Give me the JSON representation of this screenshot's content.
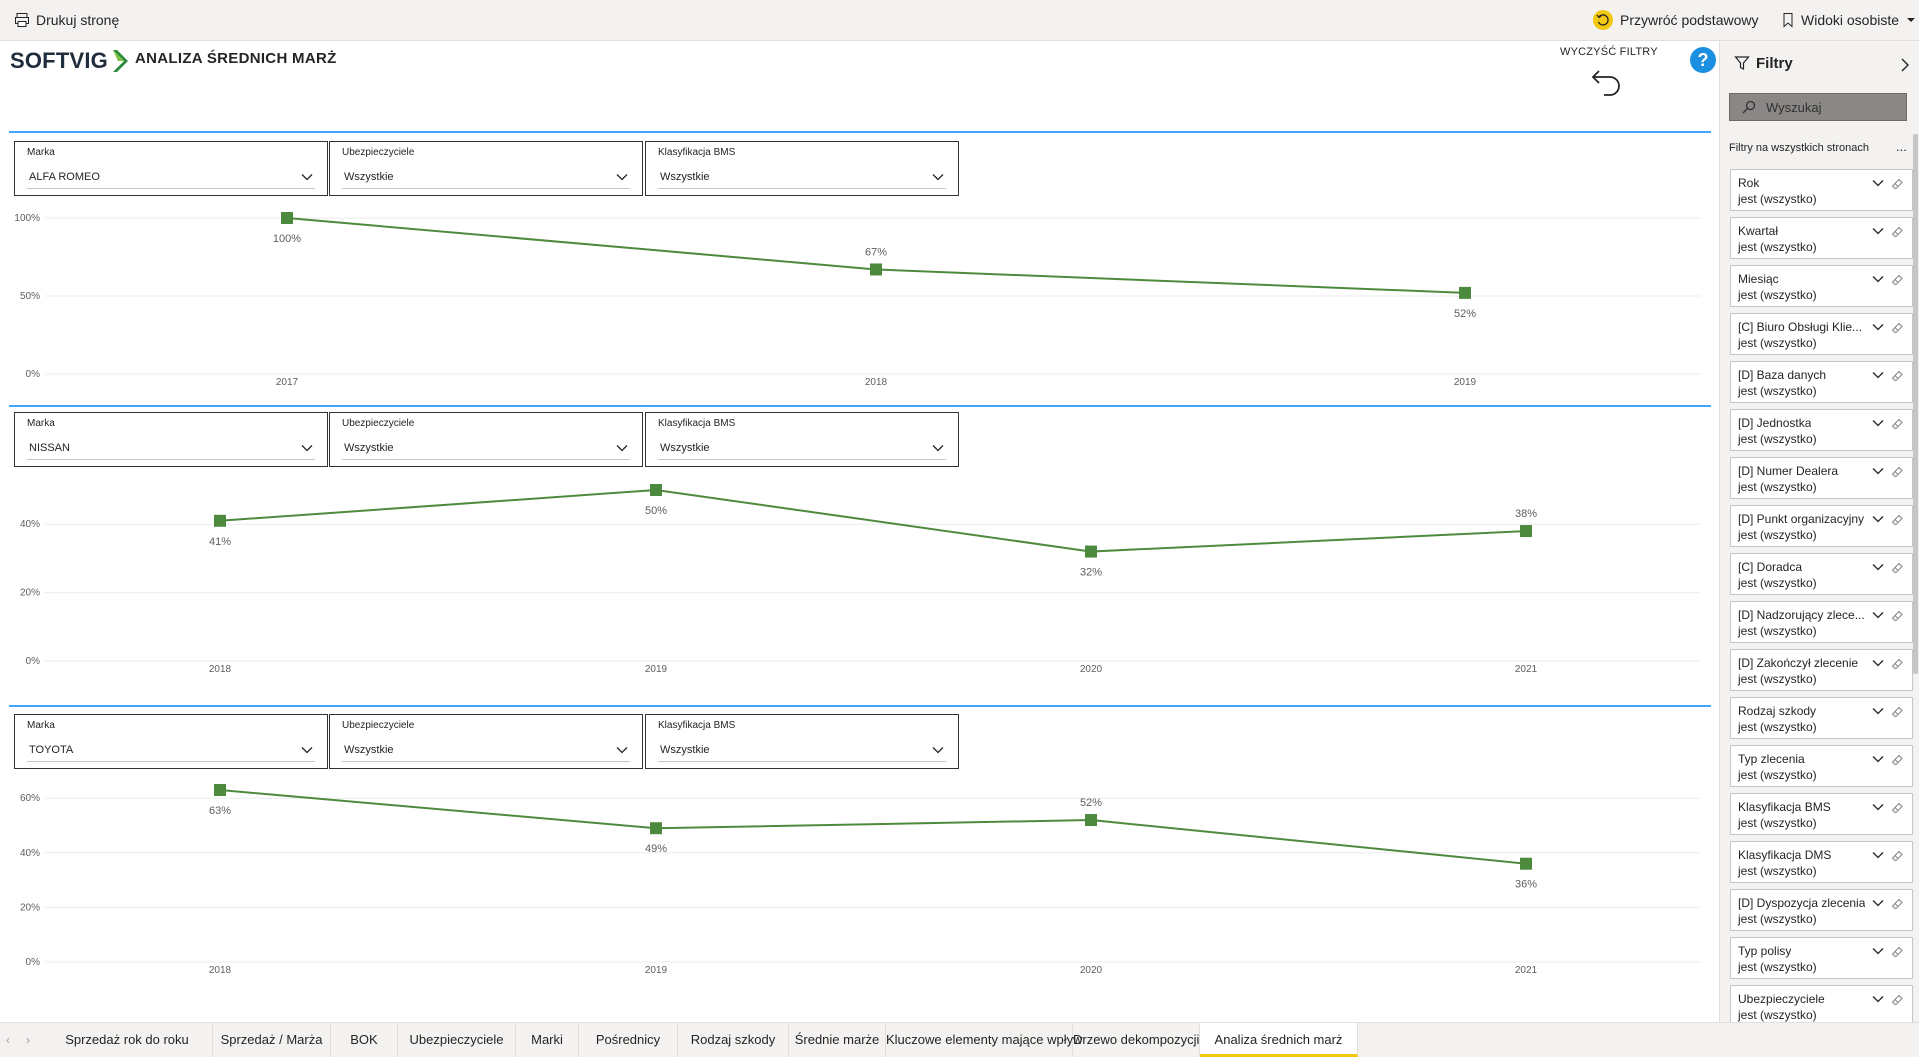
{
  "toolbar": {
    "print_label": "Drukuj stronę",
    "reset_label": "Przywróć podstawowy",
    "views_label": "Widoki osobiste"
  },
  "header": {
    "logo": "SOFTVIG",
    "title": "ANALIZA ŚREDNICH MARŻ",
    "clear_filters": "WYCZYŚĆ FILTRY",
    "help": "?"
  },
  "sections": [
    {
      "slicers": [
        {
          "title": "Marka",
          "value": "ALFA ROMEO"
        },
        {
          "title": "Ubezpieczyciele",
          "value": "Wszystkie"
        },
        {
          "title": "Klasyfikacja BMS",
          "value": "Wszystkie"
        }
      ]
    },
    {
      "slicers": [
        {
          "title": "Marka",
          "value": "NISSAN"
        },
        {
          "title": "Ubezpieczyciele",
          "value": "Wszystkie"
        },
        {
          "title": "Klasyfikacja BMS",
          "value": "Wszystkie"
        }
      ]
    },
    {
      "slicers": [
        {
          "title": "Marka",
          "value": "TOYOTA"
        },
        {
          "title": "Ubezpieczyciele",
          "value": "Wszystkie"
        },
        {
          "title": "Klasyfikacja BMS",
          "value": "Wszystkie"
        }
      ]
    }
  ],
  "chart_data": [
    {
      "type": "line",
      "x": [
        "2017",
        "2018",
        "2019"
      ],
      "series": [
        {
          "values": [
            100,
            67,
            52
          ]
        }
      ],
      "data_labels": [
        "100%",
        "67%",
        "52%"
      ],
      "yticks": [
        "0%",
        "50%",
        "100%"
      ],
      "ylim": [
        0,
        100
      ],
      "grid": true,
      "color": "#4e8a3e"
    },
    {
      "type": "line",
      "x": [
        "2018",
        "2019",
        "2020",
        "2021"
      ],
      "series": [
        {
          "values": [
            41,
            50,
            32,
            38
          ]
        }
      ],
      "data_labels": [
        "41%",
        "50%",
        "32%",
        "38%"
      ],
      "yticks": [
        "0%",
        "20%",
        "40%"
      ],
      "ylim": [
        0,
        50
      ],
      "grid": true,
      "color": "#4e8a3e"
    },
    {
      "type": "line",
      "x": [
        "2018",
        "2019",
        "2020",
        "2021"
      ],
      "series": [
        {
          "values": [
            63,
            49,
            52,
            36
          ]
        }
      ],
      "data_labels": [
        "63%",
        "49%",
        "52%",
        "36%"
      ],
      "yticks": [
        "0%",
        "20%",
        "40%",
        "60%"
      ],
      "ylim": [
        0,
        63
      ],
      "grid": true,
      "color": "#4e8a3e"
    }
  ],
  "filter_pane": {
    "title": "Filtry",
    "search_placeholder": "Wyszukaj",
    "section_label": "Filtry na wszystkich stronach",
    "more": "...",
    "filters": [
      {
        "name": "Rok",
        "state": "jest (wszystko)"
      },
      {
        "name": "Kwartał",
        "state": "jest (wszystko)"
      },
      {
        "name": "Miesiąc",
        "state": "jest (wszystko)"
      },
      {
        "name": "[C] Biuro Obsługi Klie...",
        "state": "jest (wszystko)"
      },
      {
        "name": "[D] Baza danych",
        "state": "jest (wszystko)"
      },
      {
        "name": "[D] Jednostka",
        "state": "jest (wszystko)"
      },
      {
        "name": "[D] Numer Dealera",
        "state": "jest (wszystko)"
      },
      {
        "name": "[D] Punkt organizacyjny",
        "state": "jest (wszystko)"
      },
      {
        "name": "[C] Doradca",
        "state": "jest (wszystko)"
      },
      {
        "name": "[D] Nadzorujący zlece...",
        "state": "jest (wszystko)"
      },
      {
        "name": "[D] Zakończył zlecenie",
        "state": "jest (wszystko)"
      },
      {
        "name": "Rodzaj szkody",
        "state": "jest (wszystko)"
      },
      {
        "name": "Typ zlecenia",
        "state": "jest (wszystko)"
      },
      {
        "name": "Klasyfikacja BMS",
        "state": "jest (wszystko)"
      },
      {
        "name": "Klasyfikacja DMS",
        "state": "jest (wszystko)"
      },
      {
        "name": "[D] Dyspozycja zlecenia",
        "state": "jest (wszystko)"
      },
      {
        "name": "Typ polisy",
        "state": "jest (wszystko)"
      },
      {
        "name": "Ubezpieczyciele",
        "state": "jest (wszystko)"
      }
    ]
  },
  "tabs": [
    {
      "label": "Sprzedaż rok do roku"
    },
    {
      "label": "Sprzedaż / Marża"
    },
    {
      "label": "BOK"
    },
    {
      "label": "Ubezpieczyciele"
    },
    {
      "label": "Marki"
    },
    {
      "label": "Pośrednicy"
    },
    {
      "label": "Rodzaj szkody"
    },
    {
      "label": "Średnie marże"
    },
    {
      "label": "Kluczowe elementy mające wpływ"
    },
    {
      "label": "Drzewo dekompozycji"
    },
    {
      "label": "Analiza średnich marż"
    }
  ],
  "active_tab": 10
}
